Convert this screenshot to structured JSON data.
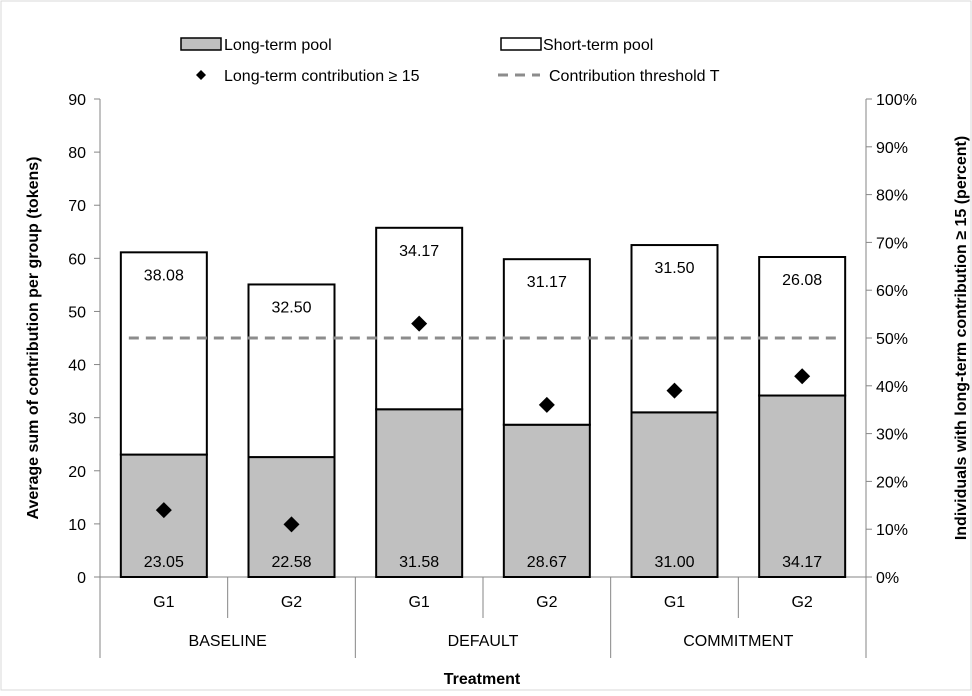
{
  "chart_data": {
    "type": "bar",
    "stacked": true,
    "x_groups": [
      "BASELINE",
      "DEFAULT",
      "COMMITMENT"
    ],
    "categories": [
      "G1",
      "G2",
      "G1",
      "G2",
      "G1",
      "G2"
    ],
    "series": [
      {
        "name": "Long-term pool",
        "values": [
          23.05,
          22.58,
          31.58,
          28.67,
          31.0,
          34.17
        ],
        "labels": [
          "23.05",
          "22.58",
          "31.58",
          "28.67",
          "31.00",
          "34.17"
        ],
        "color": "#c0c0c0",
        "axis": "left"
      },
      {
        "name": "Short-term pool",
        "values": [
          38.08,
          32.5,
          34.17,
          31.17,
          31.5,
          26.08
        ],
        "labels": [
          "38.08",
          "32.50",
          "34.17",
          "31.17",
          "31.50",
          "26.08"
        ],
        "color": "#ffffff",
        "axis": "left"
      },
      {
        "name": "Long-term contribution ≥ 15",
        "type": "scatter",
        "marker": "diamond",
        "values": [
          14,
          11,
          53,
          36,
          39,
          42
        ],
        "axis": "right",
        "color": "#000000"
      },
      {
        "name": "Contribution threshold T",
        "type": "line",
        "style": "dashed",
        "value": 50,
        "axis": "right",
        "color": "#8c8c8c"
      }
    ],
    "xlabel": "Treatment",
    "ylabel": "Average sum of contribution per group (tokens)",
    "y2label": "Individuals with long-term contribution ≥ 15 (percent)",
    "ylim": [
      0,
      90
    ],
    "yticks": [
      "0",
      "10",
      "20",
      "30",
      "40",
      "50",
      "60",
      "70",
      "80",
      "90"
    ],
    "y2lim": [
      0,
      100
    ],
    "y2ticks": [
      "0%",
      "10%",
      "20%",
      "30%",
      "40%",
      "50%",
      "60%",
      "70%",
      "80%",
      "90%",
      "100%"
    ],
    "grid": false,
    "legend": "top"
  }
}
